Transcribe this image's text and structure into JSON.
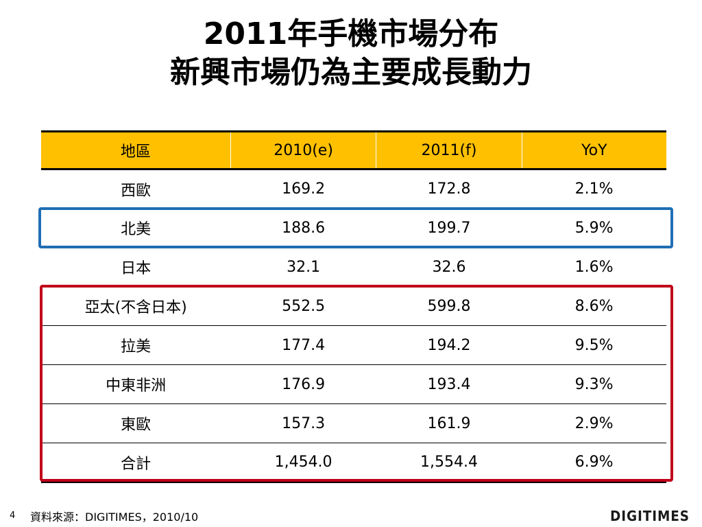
{
  "title": {
    "line1": "2011年手機市場分布",
    "line2": "新興市場仍為主要成長動力"
  },
  "table": {
    "headers": [
      "地區",
      "2010(e)",
      "2011(f)",
      "YoY"
    ],
    "rows": [
      [
        "西歐",
        "169.2",
        "172.8",
        "2.1%"
      ],
      [
        "北美",
        "188.6",
        "199.7",
        "5.9%"
      ],
      [
        "日本",
        "32.1",
        "32.6",
        "1.6%"
      ],
      [
        "亞太(不含日本)",
        "552.5",
        "599.8",
        "8.6%"
      ],
      [
        "拉美",
        "177.4",
        "194.2",
        "9.5%"
      ],
      [
        "中東非洲",
        "176.9",
        "193.4",
        "9.3%"
      ],
      [
        "東歐",
        "157.3",
        "161.9",
        "2.9%"
      ],
      [
        "合計",
        "1,454.0",
        "1,554.4",
        "6.9%"
      ]
    ]
  },
  "colors": {
    "header_fill": "#FFC000",
    "highlight_blue": "#1F6FB4",
    "highlight_red": "#C0001A"
  },
  "footer": {
    "page_number": "4",
    "source": "資料來源：DIGITIMES，2010/10",
    "logo_text": "DIGITIMES"
  }
}
